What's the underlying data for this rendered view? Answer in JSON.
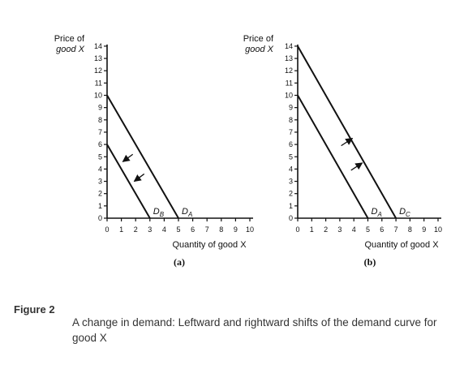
{
  "figure": {
    "label": "Figure 2",
    "caption": "A change in demand: Leftward and rightward shifts of the demand curve for good X"
  },
  "chart_data": [
    {
      "type": "line",
      "panel": "(a)",
      "ylabel_line1": "Price of",
      "ylabel_line2": "good X",
      "xlabel": "Quantity of good X",
      "xlim": [
        0,
        10
      ],
      "ylim": [
        0,
        14
      ],
      "x_ticks": [
        0,
        1,
        2,
        3,
        4,
        5,
        6,
        7,
        8,
        9,
        10
      ],
      "y_ticks": [
        0,
        1,
        2,
        3,
        4,
        5,
        6,
        7,
        8,
        9,
        10,
        11,
        12,
        13,
        14
      ],
      "grid": false,
      "series": [
        {
          "name": "DA",
          "label_main": "D",
          "label_sub": "A",
          "x": [
            0,
            5
          ],
          "y": [
            10,
            0
          ]
        },
        {
          "name": "DB",
          "label_main": "D",
          "label_sub": "B",
          "x": [
            0,
            3
          ],
          "y": [
            6,
            0
          ]
        }
      ],
      "arrows": [
        {
          "from": [
            1.8,
            5.2
          ],
          "to": [
            1.1,
            4.6
          ]
        },
        {
          "from": [
            2.6,
            3.6
          ],
          "to": [
            1.9,
            3.0
          ]
        }
      ]
    },
    {
      "type": "line",
      "panel": "(b)",
      "ylabel_line1": "Price of",
      "ylabel_line2": "good X",
      "xlabel": "Quantity of good X",
      "xlim": [
        0,
        10
      ],
      "ylim": [
        0,
        14
      ],
      "x_ticks": [
        0,
        1,
        2,
        3,
        4,
        5,
        6,
        7,
        8,
        9,
        10
      ],
      "y_ticks": [
        0,
        1,
        2,
        3,
        4,
        5,
        6,
        7,
        8,
        9,
        10,
        11,
        12,
        13,
        14
      ],
      "grid": false,
      "series": [
        {
          "name": "DA",
          "label_main": "D",
          "label_sub": "A",
          "x": [
            0,
            5
          ],
          "y": [
            10,
            0
          ]
        },
        {
          "name": "DC",
          "label_main": "D",
          "label_sub": "C",
          "x": [
            0,
            7
          ],
          "y": [
            14,
            0
          ]
        }
      ],
      "arrows": [
        {
          "from": [
            3.1,
            5.9
          ],
          "to": [
            3.9,
            6.5
          ]
        },
        {
          "from": [
            3.8,
            3.9
          ],
          "to": [
            4.6,
            4.5
          ]
        }
      ]
    }
  ]
}
